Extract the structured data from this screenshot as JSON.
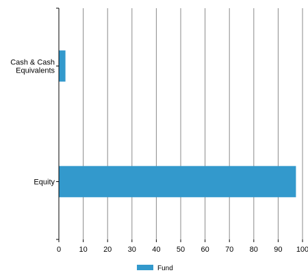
{
  "chart_data": {
    "type": "bar",
    "orientation": "horizontal",
    "categories": [
      "Cash & Cash Equivalents",
      "Equity"
    ],
    "category_label_lines": [
      [
        "Cash & Cash",
        "Equivalents"
      ],
      [
        "Equity"
      ]
    ],
    "series": [
      {
        "name": "Fund",
        "values": [
          2.7,
          97.3
        ],
        "color": "#3399cc"
      }
    ],
    "xlim": [
      0,
      100
    ],
    "xticks": [
      0,
      10,
      20,
      30,
      40,
      50,
      60,
      70,
      80,
      90,
      100
    ],
    "grid": "vertical",
    "legend_position": "bottom-center",
    "title": "",
    "xlabel": "",
    "ylabel": ""
  },
  "colors": {
    "bar": "#3399cc",
    "grid": "#888888",
    "axis": "#000000"
  }
}
